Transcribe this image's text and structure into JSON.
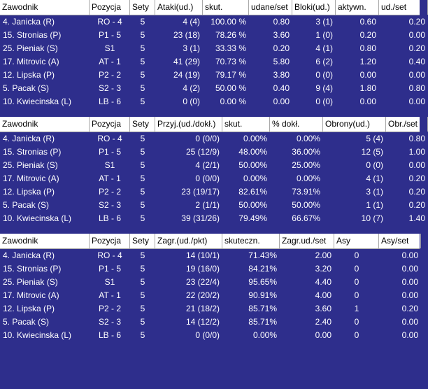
{
  "colors": {
    "background": "#2e2e8c",
    "header_bg": "#ffffff",
    "text": "#ffffff",
    "header_text": "#000000"
  },
  "tables": [
    {
      "headers": [
        "Zawodnik",
        "Pozycja",
        "Sety",
        "Ataki(ud.)",
        "skut.",
        "udane/set",
        "Bloki(ud.)",
        "aktywn.",
        "ud./set"
      ],
      "rows": [
        [
          "4. Janicka (R)",
          "RO - 4",
          "5",
          "4 (4)",
          "100.00 %",
          "0.80",
          "3 (1)",
          "0.60",
          "0.20"
        ],
        [
          "15. Stronias (P)",
          "P1 - 5",
          "5",
          "23 (18)",
          "78.26 %",
          "3.60",
          "1 (0)",
          "0.20",
          "0.00"
        ],
        [
          "25. Pieniak (S)",
          "S1",
          "5",
          "3 (1)",
          "33.33 %",
          "0.20",
          "4 (1)",
          "0.80",
          "0.20"
        ],
        [
          "17. Mitrovic (A)",
          "AT - 1",
          "5",
          "41 (29)",
          "70.73 %",
          "5.80",
          "6 (2)",
          "1.20",
          "0.40"
        ],
        [
          "12. Lipska (P)",
          "P2 - 2",
          "5",
          "24 (19)",
          "79.17 %",
          "3.80",
          "0 (0)",
          "0.00",
          "0.00"
        ],
        [
          "5. Pacak (S)",
          "S2 - 3",
          "5",
          "4 (2)",
          "50.00 %",
          "0.40",
          "9 (4)",
          "1.80",
          "0.80"
        ],
        [
          "10. Kwiecinska (L)",
          "LB - 6",
          "5",
          "0 (0)",
          "0.00 %",
          "0.00",
          "0 (0)",
          "0.00",
          "0.00"
        ]
      ]
    },
    {
      "headers": [
        "Zawodnik",
        "Pozycja",
        "Sety",
        "Przyj.(ud./dokł.)",
        "skut.",
        "% dokł.",
        "Obrony(ud.)",
        "Obr./set"
      ],
      "rows": [
        [
          "4. Janicka (R)",
          "RO - 4",
          "5",
          "0 (0/0)",
          "0.00%",
          "0.00%",
          "5 (4)",
          "0.80"
        ],
        [
          "15. Stronias (P)",
          "P1 - 5",
          "5",
          "25 (12/9)",
          "48.00%",
          "36.00%",
          "12 (5)",
          "1.00"
        ],
        [
          "25. Pieniak (S)",
          "S1",
          "5",
          "4 (2/1)",
          "50.00%",
          "25.00%",
          "0 (0)",
          "0.00"
        ],
        [
          "17. Mitrovic (A)",
          "AT - 1",
          "5",
          "0 (0/0)",
          "0.00%",
          "0.00%",
          "4 (1)",
          "0.20"
        ],
        [
          "12. Lipska (P)",
          "P2 - 2",
          "5",
          "23 (19/17)",
          "82.61%",
          "73.91%",
          "3 (1)",
          "0.20"
        ],
        [
          "5. Pacak (S)",
          "S2 - 3",
          "5",
          "2 (1/1)",
          "50.00%",
          "50.00%",
          "1 (1)",
          "0.20"
        ],
        [
          "10. Kwiecinska (L)",
          "LB - 6",
          "5",
          "39 (31/26)",
          "79.49%",
          "66.67%",
          "10 (7)",
          "1.40"
        ]
      ]
    },
    {
      "headers": [
        "Zawodnik",
        "Pozycja",
        "Sety",
        "Zagr.(ud./pkt)",
        "skuteczn.",
        "Zagr.ud./set",
        "Asy",
        "Asy/set"
      ],
      "rows": [
        [
          "4. Janicka (R)",
          "RO - 4",
          "5",
          "14 (10/1)",
          "71.43%",
          "2.00",
          "0",
          "0.00"
        ],
        [
          "15. Stronias (P)",
          "P1 - 5",
          "5",
          "19 (16/0)",
          "84.21%",
          "3.20",
          "0",
          "0.00"
        ],
        [
          "25. Pieniak (S)",
          "S1",
          "5",
          "23 (22/4)",
          "95.65%",
          "4.40",
          "0",
          "0.00"
        ],
        [
          "17. Mitrovic (A)",
          "AT - 1",
          "5",
          "22 (20/2)",
          "90.91%",
          "4.00",
          "0",
          "0.00"
        ],
        [
          "12. Lipska (P)",
          "P2 - 2",
          "5",
          "21 (18/2)",
          "85.71%",
          "3.60",
          "1",
          "0.20"
        ],
        [
          "5. Pacak (S)",
          "S2 - 3",
          "5",
          "14 (12/2)",
          "85.71%",
          "2.40",
          "0",
          "0.00"
        ],
        [
          "10. Kwiecinska (L)",
          "LB - 6",
          "5",
          "0 (0/0)",
          "0.00%",
          "0.00",
          "0",
          "0.00"
        ]
      ]
    }
  ]
}
